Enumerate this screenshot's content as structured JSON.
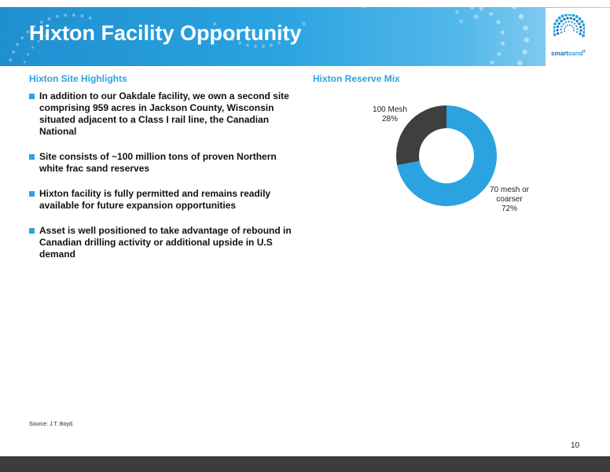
{
  "slide": {
    "title": "Hixton Facility Opportunity",
    "page_number": "10",
    "source": "Source:  J.T. Boyd."
  },
  "brand": {
    "logo_text_part1": "smart",
    "logo_text_part2": "sand",
    "logo_mark": "®",
    "primary_color": "#2aa3e0",
    "dark_blue": "#1a6fb5",
    "footer_color": "#3c3c3c"
  },
  "left": {
    "heading": "Hixton Site Highlights",
    "bullets": [
      "In addition to our Oakdale facility, we own a second site comprising 959 acres in Jackson County, Wisconsin situated adjacent to a Class I rail line, the Canadian National",
      "Site consists of ~100 million tons of proven Northern white frac sand reserves",
      "Hixton facility is fully permitted and remains readily available for future expansion opportunities",
      "Asset is well positioned to take advantage of rebound in Canadian drilling activity or additional upside in U.S demand"
    ]
  },
  "right": {
    "heading": "Hixton Reserve Mix"
  },
  "chart_data": {
    "type": "pie",
    "style": "donut",
    "title": "Hixton Reserve Mix",
    "slices": [
      {
        "label_lines": [
          "70 mesh or",
          "coarser"
        ],
        "pct_label": "72%",
        "value": 72,
        "color": "#2aa3e0"
      },
      {
        "label_lines": [
          "100 Mesh"
        ],
        "pct_label": "28%",
        "value": 28,
        "color": "#3f3f3f"
      }
    ]
  }
}
